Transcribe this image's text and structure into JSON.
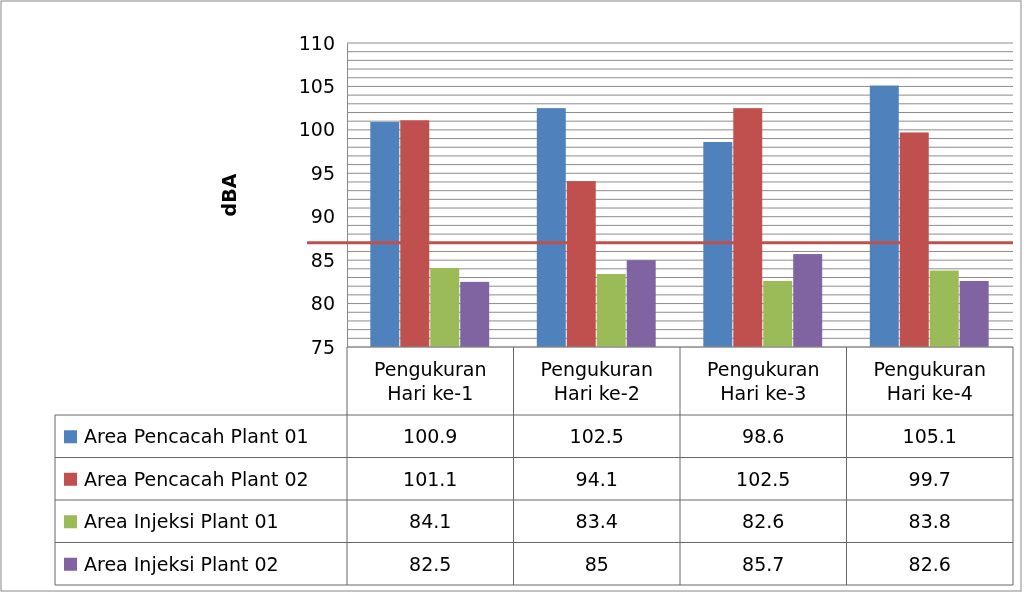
{
  "chart_data": {
    "type": "bar",
    "ylabel": "dBA",
    "categories": [
      "Pengukuran Hari ke-1",
      "Pengukuran Hari ke-2",
      "Pengukuran Hari ke-3",
      "Pengukuran Hari ke-4"
    ],
    "series": [
      {
        "name": "Area Pencacah Plant 01",
        "color": "#4f81bd",
        "values": [
          100.9,
          102.5,
          98.6,
          105.1
        ]
      },
      {
        "name": "Area Pencacah Plant 02",
        "color": "#c0504d",
        "values": [
          101.1,
          94.1,
          102.5,
          99.7
        ]
      },
      {
        "name": "Area Injeksi Plant 01",
        "color": "#9bbb59",
        "values": [
          84.1,
          83.4,
          82.6,
          83.8
        ]
      },
      {
        "name": "Area Injeksi Plant 02",
        "color": "#8064a2",
        "values": [
          82.5,
          85,
          85.7,
          82.6
        ]
      }
    ],
    "ylim": [
      75,
      110
    ],
    "yticks": [
      75,
      {
        "value": 76,
        "label": null
      },
      {
        "value": 77,
        "label": null
      },
      {
        "value": 78,
        "label": null
      },
      {
        "value": 79,
        "label": null
      },
      80,
      {
        "value": 81,
        "label": null
      },
      {
        "value": 82,
        "label": null
      },
      {
        "value": 83,
        "label": null
      },
      {
        "value": 84,
        "label": null
      },
      85,
      {
        "value": 86,
        "label": null
      },
      {
        "value": 87,
        "label": null
      },
      {
        "value": 88,
        "label": null
      },
      {
        "value": 89,
        "label": null
      },
      90,
      {
        "value": 91,
        "label": null
      },
      {
        "value": 92,
        "label": null
      },
      {
        "value": 93,
        "label": null
      },
      {
        "value": 94,
        "label": null
      },
      95,
      {
        "value": 96,
        "label": null
      },
      {
        "value": 97,
        "label": null
      },
      {
        "value": 98,
        "label": null
      },
      {
        "value": 99,
        "label": null
      },
      100,
      {
        "value": 101,
        "label": null
      },
      {
        "value": 102,
        "label": null
      },
      {
        "value": 103,
        "label": null
      },
      {
        "value": 104,
        "label": null
      },
      105,
      {
        "value": 106,
        "label": null
      },
      {
        "value": 107,
        "label": null
      },
      {
        "value": 108,
        "label": null
      },
      {
        "value": 109,
        "label": null
      },
      110
    ],
    "grid": "y",
    "ref_lines": [
      {
        "axis": "y",
        "value": 87,
        "color": "#c0504d"
      }
    ],
    "data_labels": true,
    "legend": "bottom left"
  }
}
